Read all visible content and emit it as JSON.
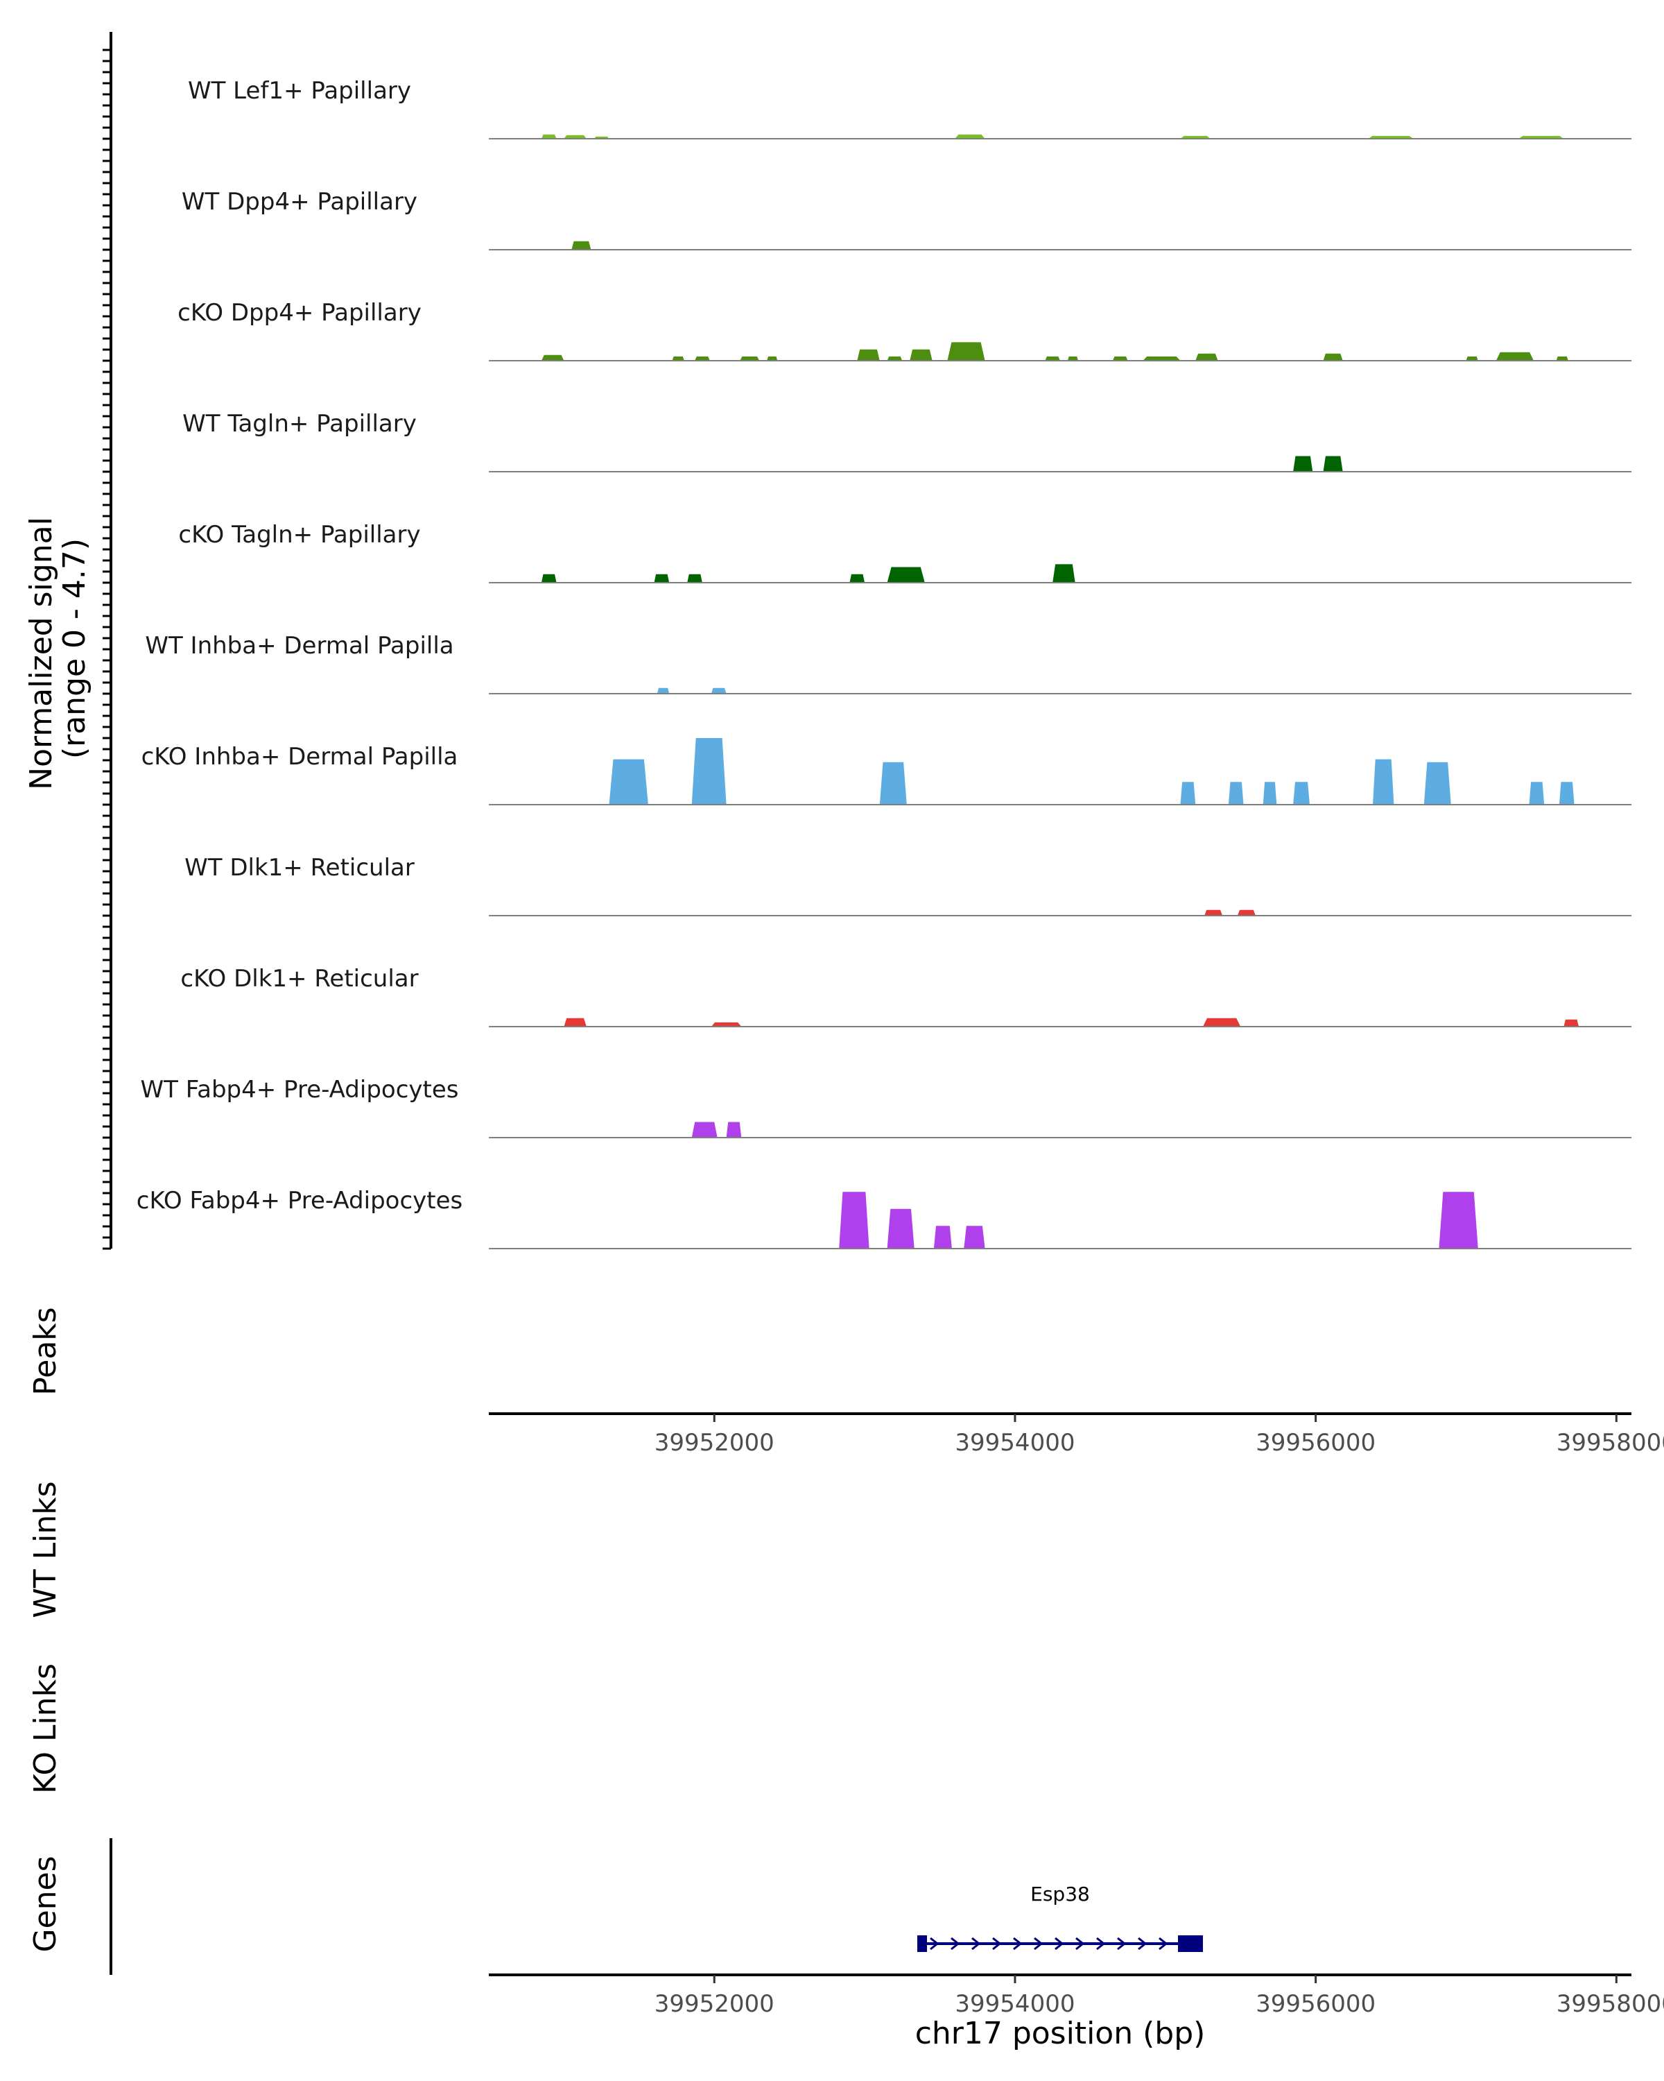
{
  "chart_data": {
    "type": "area",
    "title": "",
    "ylabel": "Normalized signal\n(range 0 - 4.7)",
    "y_label_line1": "Normalized signal",
    "y_label_line2": "(range 0 - 4.7)",
    "ylim": [
      0,
      4.7
    ],
    "xlabel": "chr17 position (bp)",
    "xlim": [
      39950500,
      39958100
    ],
    "x_ticks": [
      39952000,
      39954000,
      39956000,
      39958000
    ],
    "x_tick_labels": [
      "39952000",
      "39954000",
      "39956000",
      "39958000"
    ],
    "panel_labels": {
      "peaks": "Peaks",
      "wt_links": "WT Links",
      "ko_links": "KO Links",
      "genes": "Genes"
    },
    "series": [
      {
        "name": "WT Lef1+ Papillary",
        "color": "#77c122",
        "peaks": [
          [
            39950850,
            39950950,
            0.3
          ],
          [
            39951000,
            39951150,
            0.25
          ],
          [
            39951200,
            39951300,
            0.15
          ],
          [
            39953600,
            39953800,
            0.3
          ],
          [
            39955100,
            39955300,
            0.2
          ],
          [
            39956350,
            39956650,
            0.2
          ],
          [
            39957350,
            39957650,
            0.2
          ]
        ]
      },
      {
        "name": "WT Dpp4+ Papillary",
        "color": "#4d8d0f",
        "peaks": [
          [
            39951050,
            39951180,
            0.6
          ]
        ]
      },
      {
        "name": "cKO Dpp4+ Papillary",
        "color": "#4d8d0f",
        "peaks": [
          [
            39950850,
            39951000,
            0.4
          ],
          [
            39951720,
            39951800,
            0.3
          ],
          [
            39951870,
            39951970,
            0.3
          ],
          [
            39952170,
            39952300,
            0.3
          ],
          [
            39952350,
            39952420,
            0.3
          ],
          [
            39952950,
            39953100,
            0.8
          ],
          [
            39953150,
            39953250,
            0.3
          ],
          [
            39953300,
            39953450,
            0.8
          ],
          [
            39953550,
            39953800,
            1.3
          ],
          [
            39954200,
            39954300,
            0.3
          ],
          [
            39954350,
            39954420,
            0.3
          ],
          [
            39954650,
            39954750,
            0.3
          ],
          [
            39954850,
            39955100,
            0.3
          ],
          [
            39955200,
            39955350,
            0.5
          ],
          [
            39956050,
            39956180,
            0.5
          ],
          [
            39957000,
            39957080,
            0.3
          ],
          [
            39957200,
            39957450,
            0.6
          ],
          [
            39957600,
            39957680,
            0.3
          ]
        ]
      },
      {
        "name": "WT Tagln+ Papillary",
        "color": "#006400",
        "peaks": [
          [
            39955850,
            39955980,
            1.1
          ],
          [
            39956050,
            39956180,
            1.1
          ]
        ]
      },
      {
        "name": "cKO Tagln+ Papillary",
        "color": "#006400",
        "peaks": [
          [
            39950850,
            39950950,
            0.6
          ],
          [
            39951600,
            39951700,
            0.6
          ],
          [
            39951820,
            39951920,
            0.6
          ],
          [
            39952900,
            39953000,
            0.6
          ],
          [
            39953150,
            39953400,
            1.1
          ],
          [
            39954250,
            39954400,
            1.3
          ]
        ]
      },
      {
        "name": "WT Inhba+ Dermal Papilla",
        "color": "#5dade2",
        "peaks": [
          [
            39951620,
            39951700,
            0.4
          ],
          [
            39951980,
            39952080,
            0.4
          ]
        ]
      },
      {
        "name": "cKO Inhba+ Dermal Papilla",
        "color": "#5dade2",
        "peaks": [
          [
            39951300,
            39951560,
            3.2
          ],
          [
            39951850,
            39952080,
            4.7
          ],
          [
            39953100,
            39953280,
            3.0
          ],
          [
            39955100,
            39955200,
            1.6
          ],
          [
            39955420,
            39955520,
            1.6
          ],
          [
            39955650,
            39955740,
            1.6
          ],
          [
            39955850,
            39955960,
            1.6
          ],
          [
            39956380,
            39956520,
            3.2
          ],
          [
            39956720,
            39956900,
            3.0
          ],
          [
            39957420,
            39957520,
            1.6
          ],
          [
            39957620,
            39957720,
            1.6
          ]
        ]
      },
      {
        "name": "WT Dlk1+ Reticular",
        "color": "#e53935",
        "peaks": [
          [
            39955260,
            39955380,
            0.4
          ],
          [
            39955480,
            39955600,
            0.4
          ]
        ]
      },
      {
        "name": "cKO Dlk1+ Reticular",
        "color": "#e53935",
        "peaks": [
          [
            39951000,
            39951150,
            0.6
          ],
          [
            39951980,
            39952180,
            0.3
          ],
          [
            39955250,
            39955500,
            0.6
          ],
          [
            39957650,
            39957750,
            0.5
          ]
        ]
      },
      {
        "name": "WT Fabp4+ Pre-Adipocytes",
        "color": "#b03fec",
        "peaks": [
          [
            39951850,
            39952020,
            1.1
          ],
          [
            39952080,
            39952180,
            1.1
          ]
        ]
      },
      {
        "name": "cKO Fabp4+ Pre-Adipocytes",
        "color": "#b03fec",
        "peaks": [
          [
            39952830,
            39953030,
            4.0
          ],
          [
            39953150,
            39953330,
            2.8
          ],
          [
            39953460,
            39953580,
            1.6
          ],
          [
            39953660,
            39953800,
            1.6
          ],
          [
            39956820,
            39957080,
            4.0
          ]
        ]
      }
    ],
    "genes": [
      {
        "name": "Esp38",
        "start": 39953350,
        "end": 39955250,
        "strand": "+",
        "color": "#00007f"
      }
    ]
  }
}
